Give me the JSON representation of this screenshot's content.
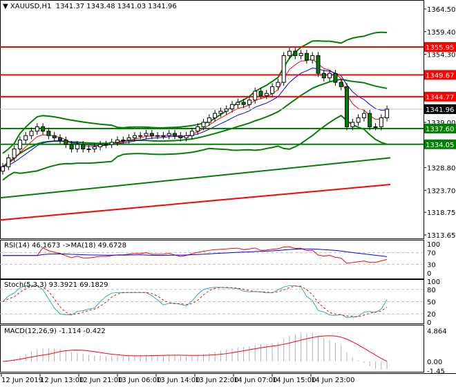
{
  "header": {
    "symbol": "XAUUSD,H1",
    "ohlc": "1341.37 1343.48 1341.03 1341.96"
  },
  "price_axis": {
    "ticks": [
      "1364.50",
      "1359.40",
      "1354.30",
      "1339.00",
      "1328.80",
      "1323.70",
      "1318.75",
      "1313.65"
    ],
    "tick_values": [
      1364.5,
      1359.4,
      1354.3,
      1339.0,
      1328.8,
      1323.7,
      1318.75,
      1313.65
    ],
    "range": [
      1313.65,
      1364.5
    ]
  },
  "levels": [
    {
      "value": 1355.95,
      "label": "1355.95",
      "color": "#ff0000"
    },
    {
      "value": 1349.67,
      "label": "1349.67",
      "color": "#ff0000"
    },
    {
      "value": 1344.77,
      "label": "1344.77",
      "color": "#ff0000"
    },
    {
      "value": 1337.6,
      "label": "1337.60",
      "color": "#008000"
    },
    {
      "value": 1334.05,
      "label": "1334.05",
      "color": "#008000"
    }
  ],
  "current_price": {
    "value": 1341.96,
    "label": "1341.96"
  },
  "closes": [
    1329,
    1331,
    1333,
    1335,
    1336,
    1337,
    1338,
    1337,
    1336,
    1335.5,
    1335,
    1334,
    1333,
    1334,
    1333,
    1333,
    1333.5,
    1334,
    1334,
    1334.5,
    1335,
    1335,
    1335.5,
    1336,
    1336,
    1336.5,
    1336,
    1336,
    1336,
    1336.5,
    1336,
    1335.5,
    1336,
    1337,
    1338,
    1339,
    1340,
    1341,
    1341.5,
    1342,
    1343,
    1343.5,
    1343,
    1344,
    1346,
    1345,
    1345.5,
    1347,
    1348,
    1354,
    1355,
    1354,
    1354.5,
    1353,
    1354,
    1350,
    1349,
    1350,
    1348,
    1347,
    1338,
    1339,
    1340,
    1341,
    1338,
    1338,
    1340,
    1341.96
  ],
  "long_mas": [
    {
      "color": "#008000",
      "start": 1322,
      "end": 1331
    },
    {
      "color": "#ff0000",
      "start": 1317,
      "end": 1325
    }
  ],
  "colors": {
    "bull": "#ffffff",
    "bear": "#008000",
    "band": "#008000",
    "ma_fast": "#ff0000",
    "ma_slow": "#0000ff",
    "stoch_main": "#20b2aa",
    "stoch_signal": "#ff0000"
  },
  "rsi": {
    "title": "RSI(14) 46.1673  ->MA(18) 49.6728",
    "ticks": [
      "100",
      "70",
      "30",
      "0"
    ]
  },
  "stoch": {
    "title": "Stoch(5,3,3) 93.3921 69.1829",
    "ticks": [
      "100",
      "80",
      "50",
      "20",
      "0"
    ]
  },
  "macd": {
    "title": "MACD(12,26,9) -1.114 -0.422",
    "ticks": [
      "4.864",
      "0.00",
      "-1.45"
    ]
  },
  "time_axis": [
    "12 Jun 2019",
    "12 Jun 13:00",
    "12 Jun 21:00",
    "13 Jun 06:00",
    "13 Jun 14:00",
    "13 Jun 22:00",
    "14 Jun 07:00",
    "14 Jun 15:00",
    "14 Jun 23:00"
  ]
}
